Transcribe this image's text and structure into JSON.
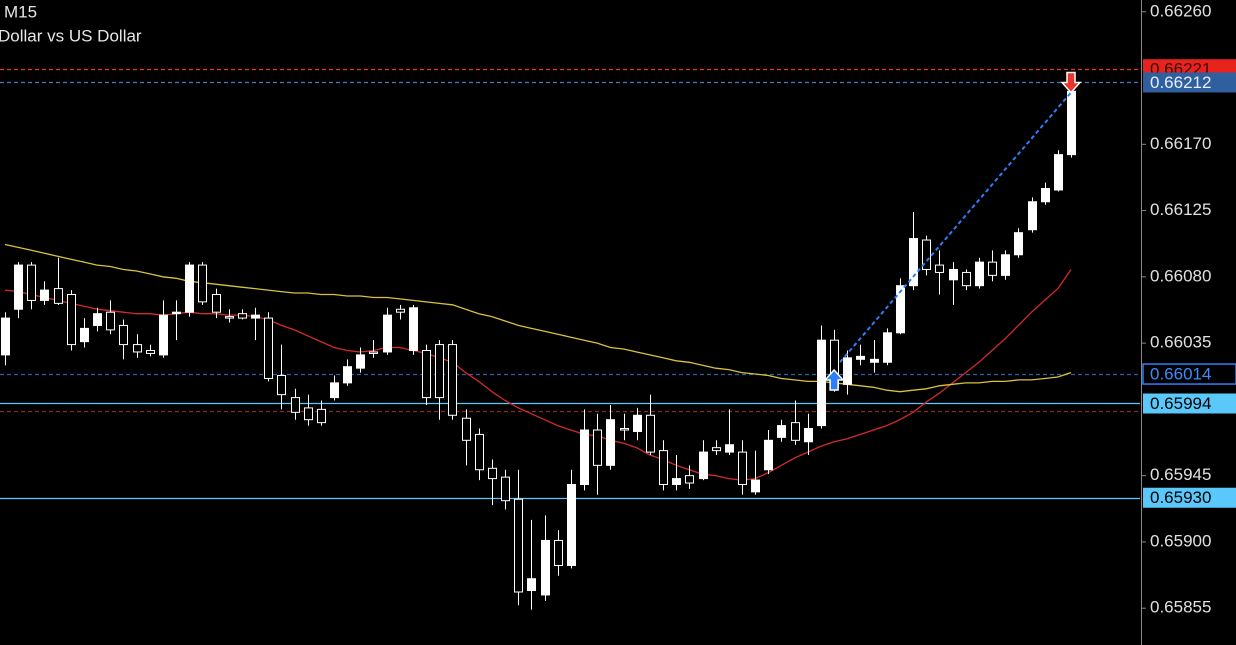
{
  "chart_data": {
    "type": "candlestick",
    "title": "M15",
    "subtitle": "Dollar vs US Dollar",
    "categories": [
      null,
      null,
      null,
      null,
      null,
      null,
      null,
      null,
      null,
      null,
      null,
      null,
      null,
      null,
      null,
      null,
      null,
      null,
      null,
      null,
      null,
      null,
      null,
      null,
      null,
      null,
      null,
      null,
      null,
      null,
      null,
      null,
      null,
      null,
      null,
      null,
      null,
      null,
      null,
      null,
      null,
      null,
      null,
      null,
      null,
      null,
      null,
      null,
      null,
      null,
      null,
      null,
      null,
      null,
      null,
      null,
      null,
      null,
      null,
      null,
      null,
      null,
      null,
      null,
      null,
      null,
      null,
      null,
      null,
      null,
      null,
      null,
      null,
      null,
      null,
      null,
      null,
      null,
      null,
      null,
      null,
      null
    ],
    "open": [
      0.66027,
      0.66058,
      0.66088,
      0.66064,
      0.66072,
      0.66068,
      0.66036,
      0.66047,
      0.66056,
      0.66047,
      0.66034,
      0.6603,
      0.66027,
      0.66055,
      0.66056,
      0.66088,
      0.66068,
      0.66053,
      0.66055,
      0.66052,
      0.66052,
      0.66013,
      0.65998,
      0.65991,
      0.6599,
      0.65998,
      0.66008,
      0.66018,
      0.66029,
      0.66029,
      0.66058,
      0.6603,
      0.6603,
      0.66034,
      0.66034,
      0.65984,
      0.65973,
      0.6595,
      0.65944,
      0.65929,
      0.65867,
      0.65864,
      0.65901,
      0.65884,
      0.65939,
      0.65976,
      0.65952,
      0.65977,
      0.65975,
      0.65986,
      0.65962,
      0.65939,
      0.65945,
      0.65943,
      0.65964,
      0.65961,
      0.65961,
      0.65934,
      0.65949,
      0.65971,
      0.65981,
      0.65968,
      0.65979,
      0.66037,
      0.66007,
      0.66024,
      0.66022,
      0.66022,
      0.66042,
      0.66074,
      0.66105,
      0.66088,
      0.66078,
      0.66083,
      0.66074,
      0.6609,
      0.66081,
      0.66095,
      0.66112,
      0.66131,
      0.66139,
      0.66163
    ],
    "high": [
      0.66056,
      0.6609,
      0.6609,
      0.66077,
      0.66093,
      0.66071,
      0.66052,
      0.66059,
      0.66064,
      0.66051,
      0.66041,
      0.66034,
      0.66064,
      0.66064,
      0.6609,
      0.6609,
      0.66072,
      0.66058,
      0.66058,
      0.66059,
      0.66056,
      0.66034,
      0.66004,
      0.66,
      0.65996,
      0.66013,
      0.66024,
      0.66032,
      0.66037,
      0.66059,
      0.66061,
      0.66061,
      0.66034,
      0.66037,
      0.66037,
      0.6599,
      0.65977,
      0.65956,
      0.65949,
      0.65949,
      0.65915,
      0.65918,
      0.65908,
      0.65949,
      0.6599,
      0.65987,
      0.65993,
      0.65987,
      0.65991,
      0.66,
      0.65969,
      0.65959,
      0.65952,
      0.65969,
      0.65969,
      0.6599,
      0.65969,
      0.65962,
      0.65976,
      0.65983,
      0.65996,
      0.65987,
      0.66047,
      0.66044,
      0.6603,
      0.66034,
      0.66037,
      0.66045,
      0.66079,
      0.66124,
      0.66108,
      0.66098,
      0.6609,
      0.66085,
      0.66093,
      0.66098,
      0.66098,
      0.66113,
      0.66134,
      0.66144,
      0.66166,
      0.6621
    ],
    "low": [
      0.6602,
      0.66052,
      0.66058,
      0.66061,
      0.66061,
      0.6603,
      0.66032,
      0.66043,
      0.66041,
      0.66024,
      0.66025,
      0.66026,
      0.66025,
      0.66037,
      0.66053,
      0.66061,
      0.66052,
      0.66049,
      0.66051,
      0.66037,
      0.66009,
      0.6599,
      0.65983,
      0.65979,
      0.65979,
      0.65996,
      0.66006,
      0.66015,
      0.66025,
      0.66027,
      0.66051,
      0.66027,
      0.65993,
      0.65983,
      0.65983,
      0.65952,
      0.65942,
      0.65925,
      0.65922,
      0.65857,
      0.65854,
      0.6586,
      0.65877,
      0.65882,
      0.65935,
      0.65932,
      0.65949,
      0.65969,
      0.65969,
      0.65959,
      0.65935,
      0.65935,
      0.65936,
      0.65942,
      0.65959,
      0.65959,
      0.65932,
      0.65932,
      0.65946,
      0.65968,
      0.65966,
      0.65959,
      0.65977,
      0.66002,
      0.66,
      0.6602,
      0.66015,
      0.6602,
      0.66041,
      0.66071,
      0.66081,
      0.66068,
      0.66061,
      0.66071,
      0.66072,
      0.66077,
      0.66078,
      0.66093,
      0.6611,
      0.66129,
      0.66138,
      0.66161
    ],
    "close": [
      0.66052,
      0.66088,
      0.66064,
      0.66071,
      0.66062,
      0.66034,
      0.66045,
      0.66055,
      0.66044,
      0.66034,
      0.66029,
      0.66028,
      0.66054,
      0.66056,
      0.66088,
      0.66063,
      0.66056,
      0.66052,
      0.66052,
      0.66054,
      0.66011,
      0.66,
      0.65988,
      0.65983,
      0.65981,
      0.66008,
      0.66019,
      0.66027,
      0.66028,
      0.66054,
      0.66056,
      0.66059,
      0.65998,
      0.65998,
      0.65986,
      0.65969,
      0.65949,
      0.65943,
      0.65928,
      0.65866,
      0.65875,
      0.65901,
      0.65884,
      0.65939,
      0.65976,
      0.65952,
      0.65983,
      0.65976,
      0.65986,
      0.65961,
      0.65939,
      0.65943,
      0.6594,
      0.65961,
      0.65962,
      0.65966,
      0.65939,
      0.65942,
      0.65969,
      0.65979,
      0.65969,
      0.65977,
      0.66037,
      0.66005,
      0.66025,
      0.66026,
      0.66024,
      0.66042,
      0.66074,
      0.66106,
      0.66085,
      0.66083,
      0.66085,
      0.66074,
      0.6609,
      0.66081,
      0.66095,
      0.6611,
      0.66131,
      0.6614,
      0.66163,
      0.66206
    ],
    "up_color": "#ffffff",
    "down_color": "#000000",
    "wick_color": "#ffffff",
    "ma": [
      {
        "color": "#d42a2a",
        "values": [
          0.66071,
          0.6607,
          0.66068,
          0.66066,
          0.66064,
          0.66062,
          0.6606,
          0.66058,
          0.66057,
          0.66056,
          0.66055,
          0.66055,
          0.66054,
          0.66055,
          0.66056,
          0.66055,
          0.66055,
          0.66054,
          0.66054,
          0.66053,
          0.66051,
          0.66047,
          0.66044,
          0.6604,
          0.66036,
          0.66032,
          0.6603,
          0.66029,
          0.6603,
          0.66032,
          0.66032,
          0.6603,
          0.66028,
          0.66025,
          0.66022,
          0.66015,
          0.66009,
          0.66002,
          0.65996,
          0.65991,
          0.65987,
          0.65983,
          0.65979,
          0.65976,
          0.65973,
          0.65972,
          0.65969,
          0.65967,
          0.65964,
          0.65959,
          0.65956,
          0.65952,
          0.65949,
          0.65946,
          0.65945,
          0.65943,
          0.65942,
          0.65943,
          0.65947,
          0.65952,
          0.65957,
          0.65961,
          0.65965,
          0.65968,
          0.6597,
          0.65973,
          0.65976,
          0.65979,
          0.65983,
          0.65988,
          0.65995,
          0.66001,
          0.66008,
          0.66015,
          0.66022,
          0.6603,
          0.66038,
          0.66047,
          0.66056,
          0.66064,
          0.66072,
          0.66085
        ]
      },
      {
        "color": "#d8c23c",
        "values": [
          0.66102,
          0.661,
          0.66098,
          0.66096,
          0.66094,
          0.66092,
          0.6609,
          0.66088,
          0.66087,
          0.66085,
          0.66084,
          0.66082,
          0.6608,
          0.66079,
          0.66077,
          0.66076,
          0.66075,
          0.66074,
          0.66073,
          0.66072,
          0.66071,
          0.6607,
          0.66069,
          0.66069,
          0.66068,
          0.66068,
          0.66067,
          0.66067,
          0.66066,
          0.66066,
          0.66065,
          0.66064,
          0.66063,
          0.66062,
          0.66061,
          0.66058,
          0.66055,
          0.66053,
          0.6605,
          0.66047,
          0.66045,
          0.66043,
          0.66041,
          0.66039,
          0.66037,
          0.66035,
          0.66032,
          0.66031,
          0.66029,
          0.66027,
          0.66025,
          0.66023,
          0.66022,
          0.6602,
          0.66018,
          0.66017,
          0.66015,
          0.66014,
          0.66013,
          0.66011,
          0.6601,
          0.66009,
          0.66009,
          0.66008,
          0.66007,
          0.66006,
          0.66005,
          0.66003,
          0.66002,
          0.66003,
          0.66004,
          0.66006,
          0.66007,
          0.66008,
          0.66008,
          0.66009,
          0.66009,
          0.6601,
          0.6601,
          0.66011,
          0.66012,
          0.66015
        ]
      }
    ],
    "levels": [
      {
        "value": 0.66221,
        "color": "#e8342c",
        "style": "dashed",
        "label_bg": "#e8231e",
        "label_color": "#3a0a0a"
      },
      {
        "value": 0.66212,
        "color": "#4a78c0",
        "style": "dashed",
        "label_bg": "#2f5f9e",
        "label_color": "#e8eef8"
      },
      {
        "value": 0.66014,
        "color": "#2f5fae",
        "style": "dashed",
        "label_bg": "#000000",
        "label_border": "#2d7ff9",
        "label_color": "#3d8bff"
      },
      {
        "value": 0.65989,
        "color": "#8a2a2a",
        "style": "dashed"
      },
      {
        "value": 0.65994,
        "color": "#5ac8fa",
        "style": "solid",
        "label_bg": "#5ac8fa",
        "label_color": "#000000"
      },
      {
        "value": 0.6593,
        "label": "0.65930",
        "color": "#5ac8fa",
        "style": "solid",
        "label_bg": "#5ac8fa",
        "label_color": "#000000"
      }
    ],
    "trade": {
      "open_index": 63,
      "open": 0.66014,
      "close_index": 81,
      "close": 0.66212,
      "color": "#2d7ff9",
      "close_color": "#e8342c"
    },
    "ylim": [
      0.6583,
      0.66268
    ],
    "yticks": [
      {
        "value": 0.6626,
        "label": "0.66260"
      },
      {
        "value": 0.6617,
        "label": "0.66170"
      },
      0.66125,
      {
        "value": 0.6608,
        "label": "0.66080"
      },
      0.66035,
      0.65945,
      {
        "value": 0.659,
        "label": "0.65900"
      },
      0.65855
    ]
  }
}
